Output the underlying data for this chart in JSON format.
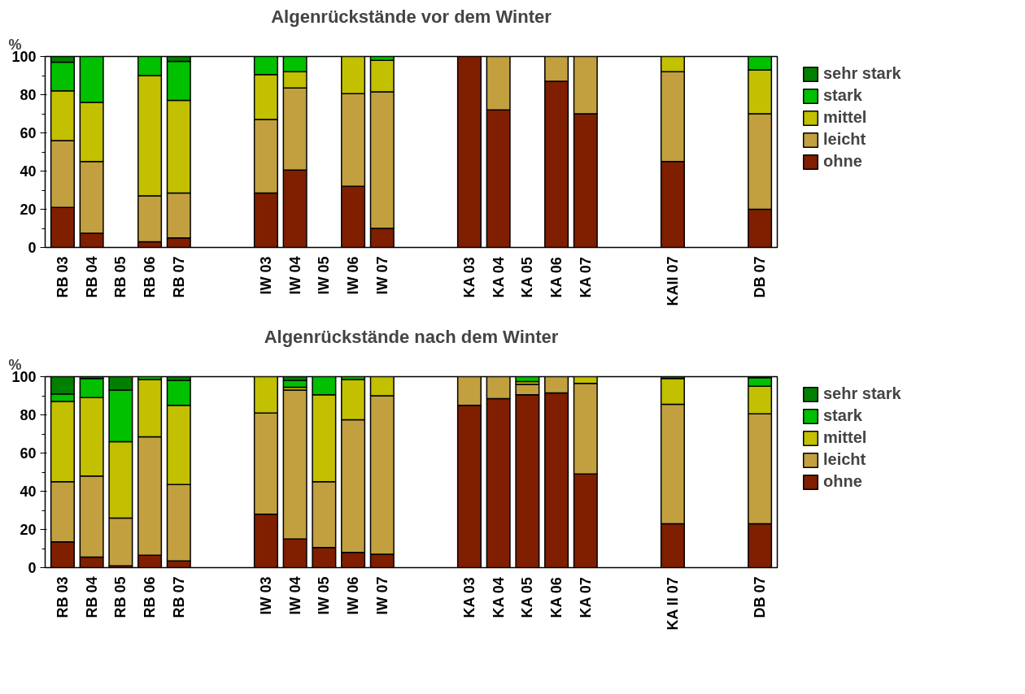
{
  "chart_data": [
    {
      "type": "bar",
      "stacked": true,
      "title": "Algenrückstände vor dem Winter",
      "ylabel": "%",
      "ylim": [
        0,
        100
      ],
      "yticks": [
        0,
        20,
        40,
        60,
        80,
        100
      ],
      "grid": false,
      "legend": "right",
      "categories": [
        "RB 03",
        "RB 04",
        "RB 05",
        "RB 06",
        "RB 07",
        null,
        null,
        "IW 03",
        "IW 04",
        "IW 05",
        "IW 06",
        "IW 07",
        null,
        null,
        "KA 03",
        "KA 04",
        "KA 05",
        "KA 06",
        "KA 07",
        null,
        null,
        "KAII 07",
        null,
        null,
        "DB 07"
      ],
      "series": [
        {
          "name": "ohne",
          "color": "#7f1f00",
          "values": [
            21,
            7.5,
            null,
            3,
            5,
            null,
            null,
            28.5,
            40.5,
            null,
            32,
            10,
            null,
            null,
            100,
            72,
            null,
            87,
            70,
            null,
            null,
            45,
            null,
            null,
            20
          ]
        },
        {
          "name": "leicht",
          "color": "#c2a040",
          "values": [
            35,
            37.5,
            null,
            24,
            23.5,
            null,
            null,
            38.5,
            43,
            null,
            48.5,
            71.5,
            null,
            null,
            0,
            28,
            null,
            13,
            30,
            null,
            null,
            47,
            null,
            null,
            50
          ]
        },
        {
          "name": "mittel",
          "color": "#c2c000",
          "values": [
            26,
            31,
            null,
            63,
            48.5,
            null,
            null,
            23.5,
            8.5,
            null,
            19.5,
            16.5,
            null,
            null,
            0,
            0,
            null,
            0,
            0,
            null,
            null,
            8,
            null,
            null,
            23
          ]
        },
        {
          "name": "stark",
          "color": "#00c000",
          "values": [
            15,
            24,
            null,
            10,
            20.5,
            null,
            null,
            9.5,
            8,
            null,
            0,
            2,
            null,
            null,
            0,
            0,
            null,
            0,
            0,
            null,
            null,
            0,
            null,
            null,
            7
          ]
        },
        {
          "name": "sehr stark",
          "color": "#007f00",
          "values": [
            3,
            0,
            null,
            0,
            2.5,
            null,
            null,
            0,
            0,
            null,
            0,
            0,
            null,
            null,
            0,
            0,
            null,
            0,
            0,
            null,
            null,
            0,
            null,
            null,
            0
          ]
        }
      ]
    },
    {
      "type": "bar",
      "stacked": true,
      "title": "Algenrückstände nach dem Winter",
      "ylabel": "%",
      "ylim": [
        0,
        100
      ],
      "yticks": [
        0,
        20,
        40,
        60,
        80,
        100
      ],
      "grid": false,
      "legend": "right",
      "categories": [
        "RB 03",
        "RB 04",
        "RB 05",
        "RB 06",
        "RB 07",
        null,
        null,
        "IW 03",
        "IW 04",
        "IW 05",
        "IW 06",
        "IW 07",
        null,
        null,
        "KA 03",
        "KA 04",
        "KA 05",
        "KA 06",
        "KA 07",
        null,
        null,
        "KA II 07",
        null,
        null,
        "DB 07"
      ],
      "series": [
        {
          "name": "ohne",
          "color": "#7f1f00",
          "values": [
            13.5,
            5.5,
            1,
            6.5,
            3.5,
            null,
            null,
            28,
            15,
            10.5,
            8,
            7,
            null,
            null,
            85,
            88.5,
            90.5,
            91.5,
            49,
            null,
            null,
            23,
            null,
            null,
            23
          ]
        },
        {
          "name": "leicht",
          "color": "#c2a040",
          "values": [
            31.5,
            42.5,
            25,
            62,
            40,
            null,
            null,
            53,
            78,
            34.5,
            69.5,
            83,
            null,
            null,
            15,
            11.5,
            5.5,
            8.5,
            47.5,
            null,
            null,
            62.5,
            null,
            null,
            57.5
          ]
        },
        {
          "name": "mittel",
          "color": "#c2c000",
          "values": [
            42,
            41,
            40,
            30,
            41.5,
            null,
            null,
            19,
            1.5,
            45.5,
            21,
            10,
            null,
            null,
            0,
            0,
            1.5,
            0,
            3.5,
            null,
            null,
            13.5,
            null,
            null,
            14.5
          ]
        },
        {
          "name": "stark",
          "color": "#00c000",
          "values": [
            4,
            10,
            27,
            1.5,
            13,
            null,
            null,
            0,
            3.5,
            9.5,
            1.5,
            0,
            null,
            null,
            0,
            0,
            2.5,
            0,
            0,
            null,
            null,
            0,
            null,
            null,
            4.5
          ]
        },
        {
          "name": "sehr stark",
          "color": "#007f00",
          "values": [
            9,
            1,
            7,
            0,
            2,
            null,
            null,
            0,
            2,
            0,
            0,
            0,
            null,
            null,
            0,
            0,
            0,
            0,
            0,
            null,
            null,
            1,
            null,
            null,
            0.5
          ]
        }
      ]
    }
  ]
}
